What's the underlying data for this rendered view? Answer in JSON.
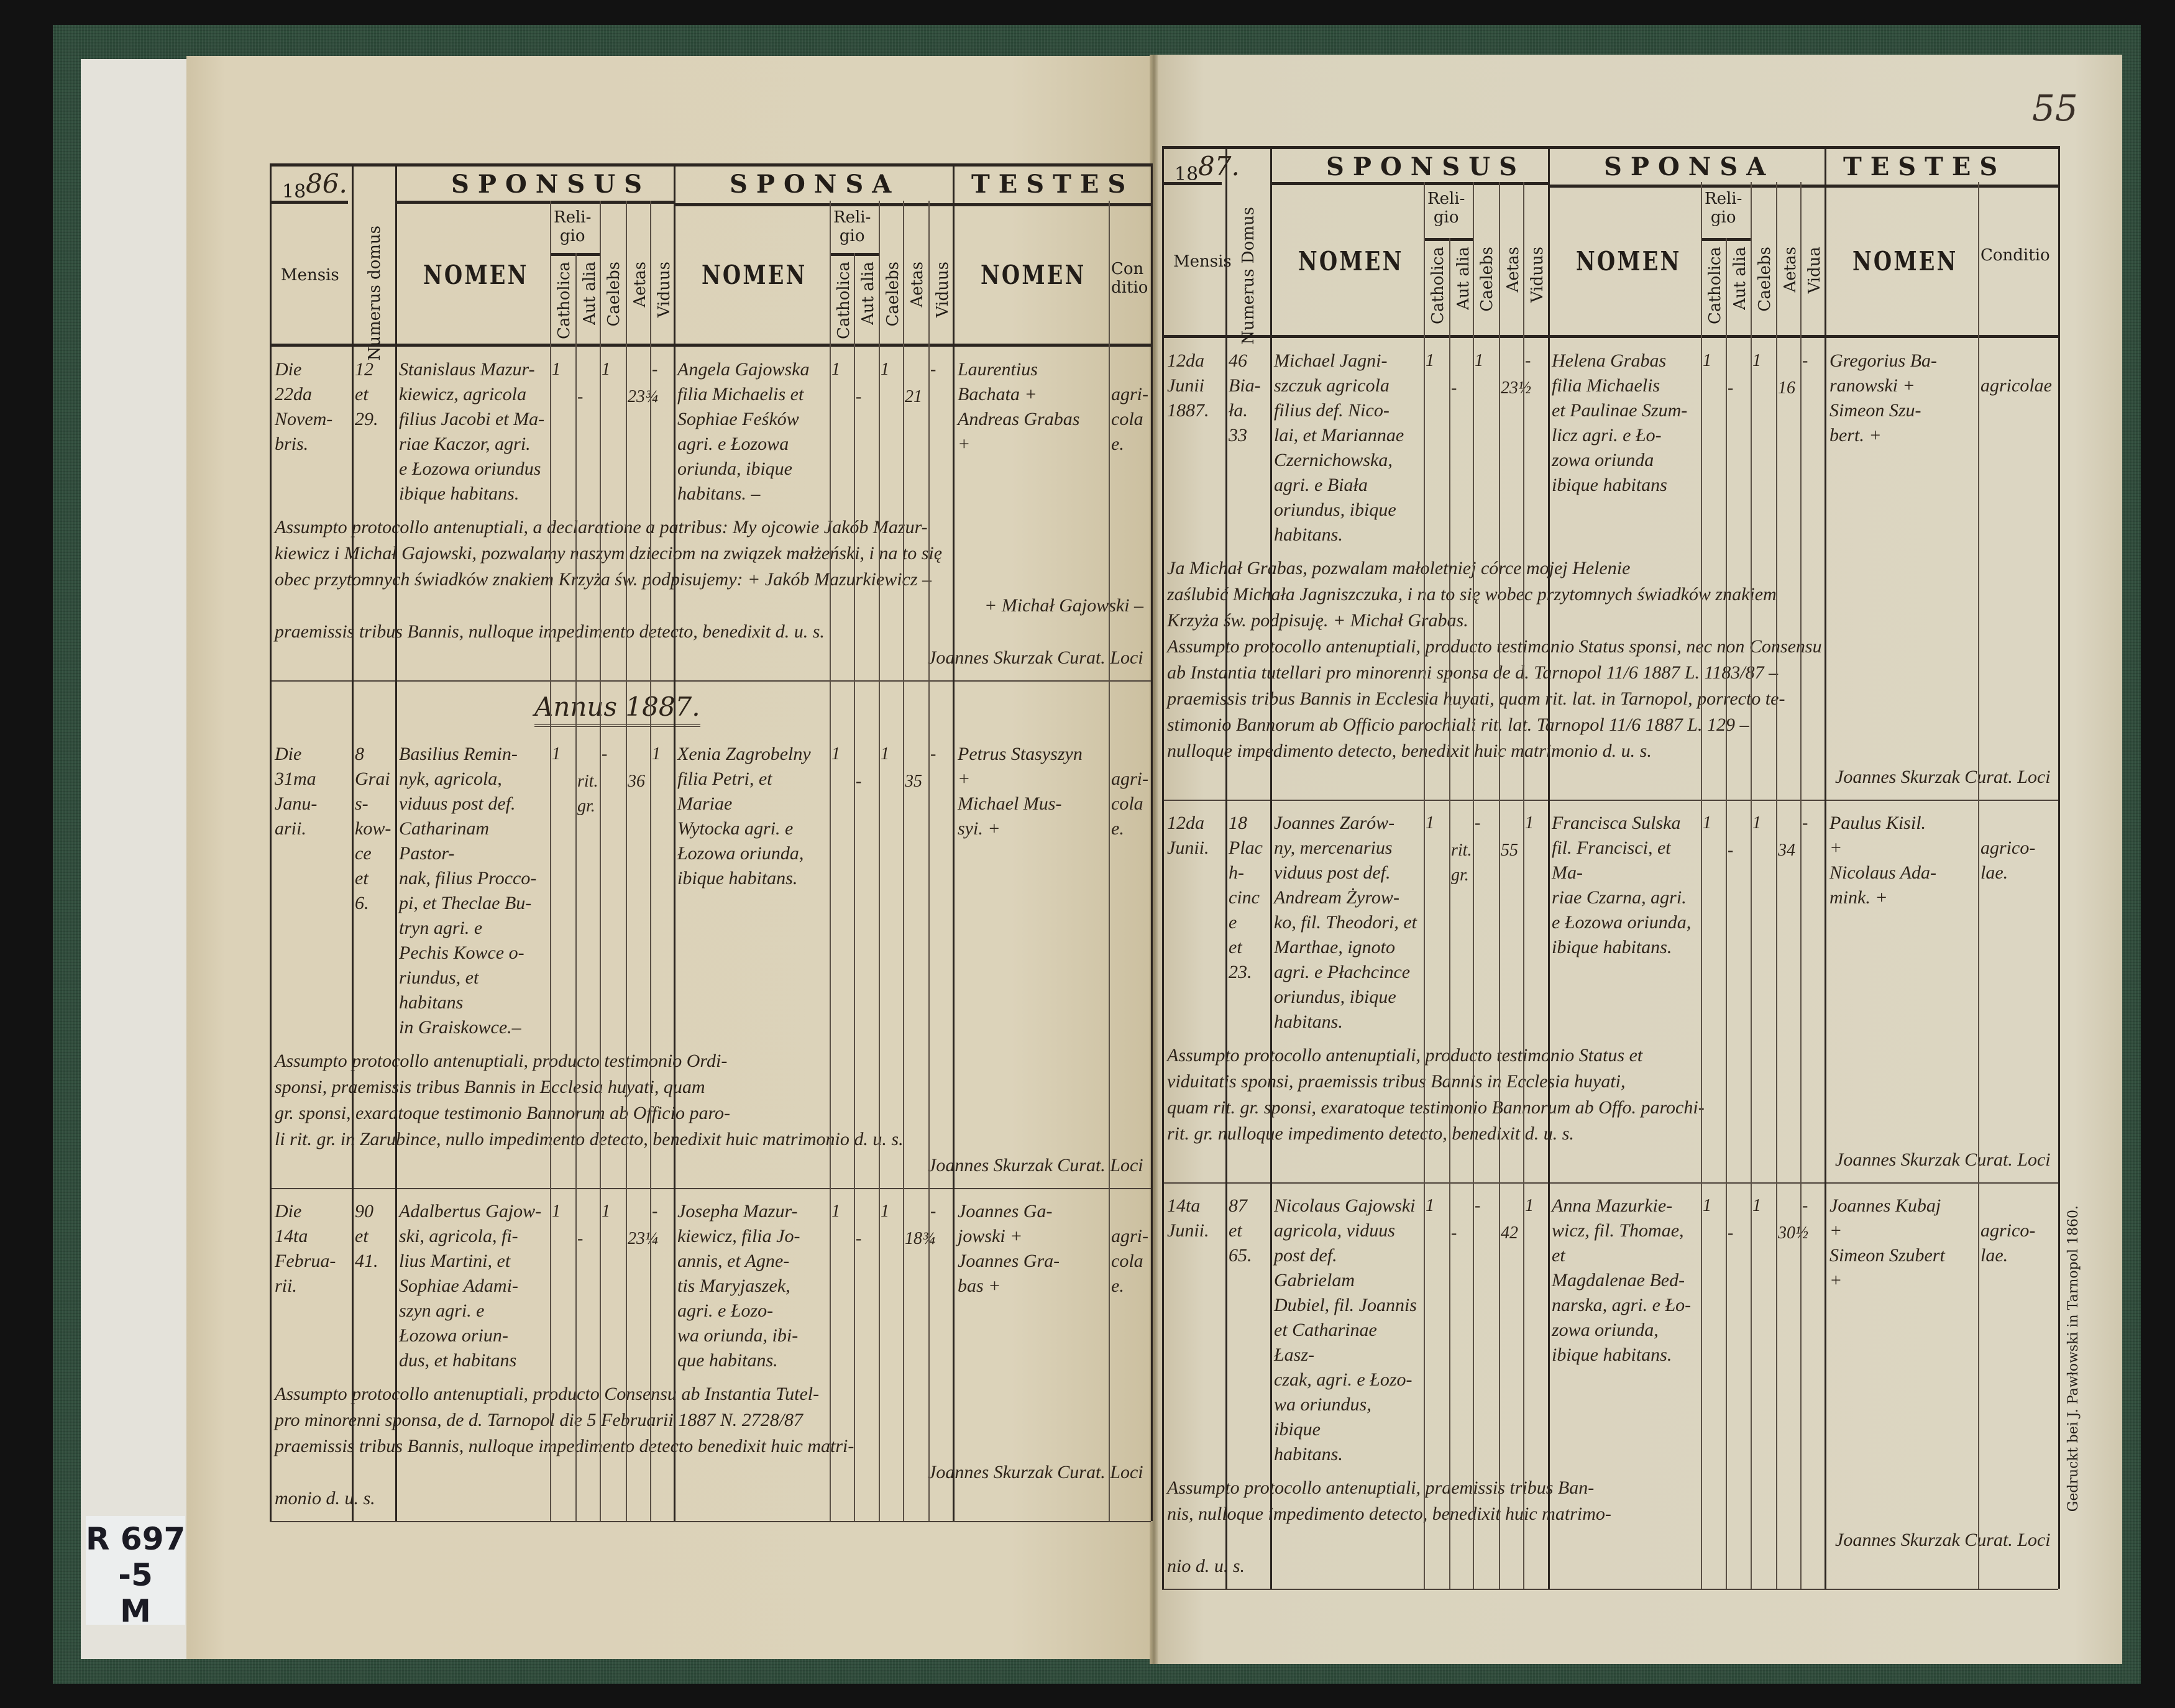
{
  "headers": {
    "mensis": "Mensis",
    "numerus_left": "Numerus domus",
    "numerus_right": "Numerus Domus",
    "sponsus": "SPONSUS",
    "sponsa": "SPONSA",
    "testes": "TESTES",
    "nomen": "NOMEN",
    "religio": "Reli-\ngio",
    "catholica": "Catholica",
    "aut_alia": "Aut alia",
    "caelebs": "Caelebs",
    "aetas": "Aetas",
    "viduus": "Viduus",
    "vidua": "Vidua",
    "conditio": "Conditio"
  },
  "label": {
    "text": "R 697\n-5\nM"
  },
  "left_page": {
    "year_prefix": "18",
    "year_suffix": "86.",
    "annus": "Annus 1887.",
    "entries": [
      {
        "mensis": "Die\n22da\nNovem-\nbris.",
        "domus": "12\net\n29.",
        "sponsus": "Stanislaus Mazur-\nkiewicz, agricola\nfilius Jacobi et Ma-\nriae Kaczor, agri.\ne Łozowa oriundus\nibique habitans.",
        "catholica": "1",
        "aut_alia": "-",
        "caelebs": "1",
        "aetas": "23¾",
        "viduus": "-",
        "sponsa": "Angela Gajowska\nfilia Michaelis et\nSophiae Feśków\nagri. e Łozowa\noriunda, ibique\nhabitans. –",
        "s_catholica": "1",
        "s_aut_alia": "-",
        "s_caelebs": "1",
        "s_aetas": "21",
        "s_vidua": "-",
        "testes": "Laurentius\nBachata +\nAndreas Grabas\n+",
        "conditio": "agri-\ncolae.",
        "notes": [
          "Assumpto protocollo antenuptiali, a declaratione a patribus: My ojcowie Jakób Mazur-",
          "kiewicz i Michał Gajowski, pozwalamy naszym dzieciom na związek małżeński, i na to się",
          "obec przytomnych świadków znakiem Krzyża św. podpisujemy: + Jakób Mazurkiewicz –",
          "+ Michał Gajowski –",
          "praemissis tribus Bannis, nulloque impedimento detecto, benedixit d. u. s.",
          "Joannes Skurzak Curat. Loci"
        ]
      },
      {
        "mensis": "Die\n31ma\nJanu-\narii.",
        "domus": "8\nGrais-\nkow-\nce\net\n6.",
        "sponsus": "Basilius Remin-\nnyk, agricola,\nviduus post def.\nCatharinam Pastor-\nnak, filius Procco-\npi, et Theclae Bu-\ntryn agri. e\nPechis Kowce o-\nriundus, et habitans\nin Graiskowce.–",
        "catholica": "1",
        "aut_alia": "rit.\ngr.",
        "caelebs": "-",
        "aetas": "36",
        "viduus": "1",
        "sponsa": "Xenia Zagrobelny\nfilia Petri, et Mariae\nWytocka agri. e\nŁozowa oriunda,\nibique habitans.",
        "s_catholica": "1",
        "s_aut_alia": "-",
        "s_caelebs": "1",
        "s_aetas": "35",
        "s_vidua": "-",
        "testes": "Petrus Stasyszyn\n+\nMichael Mus-\nsyi. +",
        "conditio": "agri-\ncolae.",
        "notes": [
          "Assumpto protocollo antenuptiali, producto testimonio Ordi-",
          "sponsi, praemissis tribus Bannis in Ecclesia huyati, quam",
          "gr. sponsi, exaratoque testimonio Bannorum ab Officio paro-",
          "li rit. gr. in Zarubince, nullo impedimento detecto, benedixit huic matrimonio d. u. s.",
          "Joannes Skurzak Curat. Loci"
        ]
      },
      {
        "mensis": "Die\n14ta\nFebrua-\nrii.",
        "domus": "90\net\n41.",
        "sponsus": "Adalbertus Gajow-\nski, agricola, fi-\nlius Martini, et\nSophiae Adami-\nszyn agri. e\nŁozowa oriun-\ndus, et habitans",
        "catholica": "1",
        "aut_alia": "-",
        "caelebs": "1",
        "aetas": "23¼",
        "viduus": "-",
        "sponsa": "Josepha Mazur-\nkiewicz, filia Jo-\nannis, et Agne-\ntis Maryjaszek,\nagri. e Łozo-\nwa oriunda, ibi-\nque habitans.",
        "s_catholica": "1",
        "s_aut_alia": "-",
        "s_caelebs": "1",
        "s_aetas": "18¾",
        "s_vidua": "-",
        "testes": "Joannes Ga-\njowski +\nJoannes Gra-\nbas +",
        "conditio": "agri-\ncolae.",
        "notes": [
          "Assumpto protocollo antenuptiali, producto Consensu ab Instantia Tutel-",
          "pro minorenni sponsa, de d. Tarnopol die 5 Februarii 1887 N. 2728/87",
          "praemissis tribus Bannis, nulloque impedimento detecto benedixit huic matri-",
          "Joannes Skurzak Curat. Loci",
          "monio d. u. s."
        ]
      }
    ]
  },
  "right_page": {
    "page_number": "55",
    "year_prefix": "18",
    "year_suffix": "87.",
    "printer": "Gedruckt bei J. Pawłowski in Tarnopol 1860.",
    "entries": [
      {
        "mensis": "12da\nJunii\n1887.",
        "domus": "46\nBia-\nła.\n33",
        "sponsus": "Michael Jagni-\nszczuk agricola\nfilius def. Nico-\nlai, et Mariannae\nCzernichowska,\nagri. e Biała\noriundus, ibique\nhabitans.",
        "catholica": "1",
        "aut_alia": "-",
        "caelebs": "1",
        "aetas": "23½",
        "viduus": "-",
        "sponsa": "Helena Grabas\nfilia Michaelis\net Paulinae Szum-\nlicz agri. e Ło-\nzowa oriunda\nibique habitans",
        "s_catholica": "1",
        "s_aut_alia": "-",
        "s_caelebs": "1",
        "s_aetas": "16",
        "s_vidua": "-",
        "testes": "Gregorius Ba-\nranowski +\nSimeon Szu-\nbert. +",
        "conditio": "agricolae",
        "notes": [
          "Ja Michał Grabas, pozwalam małoletniej córce mojej Helenie",
          "zaślubić Michała Jagniszczuka, i na to się wobec przytomnych świadków znakiem",
          "Krzyża św. podpisuję. + Michał Grabas.",
          "Assumpto protocollo antenuptiali, producto testimonio Status sponsi, nec non Consensu",
          "ab Instantia tutellari pro minorenni sponsa de d. Tarnopol 11/6 1887 L. 1183/87 –",
          "praemissis tribus Bannis in Ecclesia huyati, quam rit. lat. in Tarnopol, porrecto te-",
          "stimonio Bannorum ab Officio parochiali rit. lat. Tarnopol 11/6 1887 L. 129 –",
          "nulloque impedimento detecto, benedixit huic matrimonio d. u. s.",
          "Joannes Skurzak Curat. Loci"
        ]
      },
      {
        "mensis": "12da\nJunii.",
        "domus": "18\nPlach-\ncince\net\n23.",
        "sponsus": "Joannes Zarów-\nny, mercenarius\nviduus post def.\nAndream Żyrow-\nko, fil. Theodori, et\nMarthae, ignoto\nagri. e Płachcince\noriundus, ibique\nhabitans.",
        "catholica": "1",
        "aut_alia": "rit.\ngr.",
        "caelebs": "-",
        "aetas": "55",
        "viduus": "1",
        "sponsa": "Francisca Sulska\nfil. Francisci, et Ma-\nriae Czarna, agri.\ne Łozowa oriunda,\nibique habitans.",
        "s_catholica": "1",
        "s_aut_alia": "-",
        "s_caelebs": "1",
        "s_aetas": "34",
        "s_vidua": "-",
        "testes": "Paulus Kisil.\n+\nNicolaus Ada-\nmink. +",
        "conditio": "agrico-\nlae.",
        "notes": [
          "Assumpto protocollo antenuptiali, producto testimonio Status et",
          "viduitatis sponsi, praemissis tribus Bannis in Ecclesia huyati,",
          "quam rit. gr. sponsi, exaratoque testimonio Bannorum ab Offo. parochi-",
          "rit. gr. nulloque impedimento detecto, benedixit d. u. s.",
          "Joannes Skurzak Curat. Loci"
        ]
      },
      {
        "mensis": "14ta\nJunii.",
        "domus": "87\net\n65.",
        "sponsus": "Nicolaus Gajowski\nagricola, viduus\npost def. Gabrielam\nDubiel, fil. Joannis\net Catharinae Łasz-\nczak, agri. e Łozo-\nwa oriundus, ibique\nhabitans.",
        "catholica": "1",
        "aut_alia": "-",
        "caelebs": "-",
        "aetas": "42",
        "viduus": "1",
        "sponsa": "Anna Mazurkie-\nwicz, fil. Thomae, et\nMagdalenae Bed-\nnarska, agri. e Ło-\nzowa oriunda,\nibique habitans.",
        "s_catholica": "1",
        "s_aut_alia": "-",
        "s_caelebs": "1",
        "s_aetas": "30½",
        "s_vidua": "-",
        "testes": "Joannes Kubaj\n+\nSimeon Szubert\n+",
        "conditio": "agrico-\nlae.",
        "notes": [
          "Assumpto protocollo antenuptiali, praemissis tribus Ban-",
          "nis, nulloque impedimento detecto, benedixit huic matrimo-",
          "Joannes Skurzak Curat. Loci",
          "nio d. u. s."
        ]
      }
    ]
  }
}
